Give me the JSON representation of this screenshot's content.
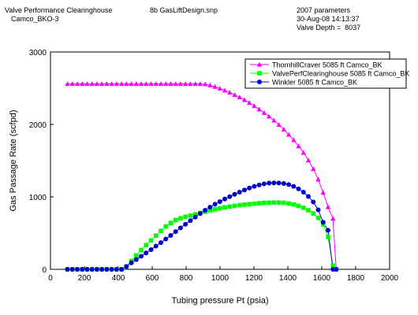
{
  "header": {
    "left_line1": "Valve Performance Clearinghouse",
    "left_line2": "Camco_BKO-3",
    "center": "8b GasLiftDesign.snp",
    "right_line1": "2007 parameters",
    "right_line2": "30-Aug-08 14:13:37",
    "right_line3": "Valve Depth =  8037"
  },
  "chart_data": {
    "type": "line",
    "xlabel": "Tubing pressure Pt (psia)",
    "ylabel": "Gas Passage Rate (scfpd)",
    "xlim": [
      0,
      2000
    ],
    "ylim": [
      0,
      3000
    ],
    "x_ticks": [
      "0",
      "200",
      "400",
      "600",
      "800",
      "1000",
      "1200",
      "1400",
      "1600",
      "1800",
      "2000"
    ],
    "y_ticks": [
      "0",
      "1000",
      "2000",
      "3000"
    ],
    "grid": false,
    "legend_position": "top-right",
    "series": [
      {
        "name": "ThornhillCraver 5085 ft Camco_BK",
        "color": "#ff00ff",
        "marker": "triangle",
        "points": [
          [
            100,
            2560
          ],
          [
            129,
            2560
          ],
          [
            158,
            2560
          ],
          [
            187,
            2560
          ],
          [
            216,
            2560
          ],
          [
            245,
            2560
          ],
          [
            274,
            2560
          ],
          [
            303,
            2560
          ],
          [
            332,
            2560
          ],
          [
            361,
            2560
          ],
          [
            390,
            2560
          ],
          [
            419,
            2560
          ],
          [
            448,
            2560
          ],
          [
            477,
            2560
          ],
          [
            506,
            2560
          ],
          [
            535,
            2560
          ],
          [
            564,
            2560
          ],
          [
            593,
            2560
          ],
          [
            622,
            2560
          ],
          [
            651,
            2560
          ],
          [
            680,
            2560
          ],
          [
            709,
            2560
          ],
          [
            738,
            2560
          ],
          [
            767,
            2560
          ],
          [
            796,
            2560
          ],
          [
            825,
            2560
          ],
          [
            854,
            2560
          ],
          [
            883,
            2560
          ],
          [
            912,
            2555
          ],
          [
            941,
            2540
          ],
          [
            970,
            2520
          ],
          [
            999,
            2495
          ],
          [
            1028,
            2468
          ],
          [
            1057,
            2440
          ],
          [
            1086,
            2408
          ],
          [
            1115,
            2375
          ],
          [
            1144,
            2338
          ],
          [
            1173,
            2298
          ],
          [
            1202,
            2255
          ],
          [
            1231,
            2208
          ],
          [
            1260,
            2160
          ],
          [
            1289,
            2110
          ],
          [
            1318,
            2055
          ],
          [
            1347,
            1995
          ],
          [
            1376,
            1930
          ],
          [
            1405,
            1860
          ],
          [
            1434,
            1785
          ],
          [
            1463,
            1700
          ],
          [
            1492,
            1610
          ],
          [
            1521,
            1505
          ],
          [
            1550,
            1385
          ],
          [
            1579,
            1240
          ],
          [
            1608,
            1060
          ],
          [
            1637,
            860
          ],
          [
            1666,
            700
          ],
          [
            1685,
            0
          ]
        ]
      },
      {
        "name": "ValvePerfClearinghouse 5085 ft Camco_BK",
        "color": "#00ff00",
        "marker": "square",
        "points": [
          [
            100,
            0
          ],
          [
            129,
            0
          ],
          [
            158,
            0
          ],
          [
            187,
            0
          ],
          [
            216,
            0
          ],
          [
            245,
            0
          ],
          [
            274,
            0
          ],
          [
            303,
            0
          ],
          [
            332,
            0
          ],
          [
            361,
            0
          ],
          [
            390,
            0
          ],
          [
            419,
            0
          ],
          [
            448,
            40
          ],
          [
            477,
            115
          ],
          [
            506,
            190
          ],
          [
            535,
            265
          ],
          [
            564,
            335
          ],
          [
            593,
            400
          ],
          [
            622,
            465
          ],
          [
            651,
            530
          ],
          [
            680,
            590
          ],
          [
            709,
            640
          ],
          [
            738,
            680
          ],
          [
            767,
            705
          ],
          [
            796,
            725
          ],
          [
            825,
            742
          ],
          [
            854,
            760
          ],
          [
            883,
            778
          ],
          [
            912,
            795
          ],
          [
            941,
            812
          ],
          [
            970,
            828
          ],
          [
            999,
            842
          ],
          [
            1028,
            855
          ],
          [
            1057,
            866
          ],
          [
            1086,
            876
          ],
          [
            1115,
            885
          ],
          [
            1144,
            893
          ],
          [
            1173,
            900
          ],
          [
            1202,
            906
          ],
          [
            1231,
            912
          ],
          [
            1260,
            917
          ],
          [
            1289,
            920
          ],
          [
            1318,
            922
          ],
          [
            1347,
            922
          ],
          [
            1376,
            918
          ],
          [
            1405,
            908
          ],
          [
            1434,
            895
          ],
          [
            1463,
            875
          ],
          [
            1492,
            850
          ],
          [
            1521,
            815
          ],
          [
            1550,
            770
          ],
          [
            1579,
            710
          ],
          [
            1608,
            620
          ],
          [
            1637,
            450
          ],
          [
            1666,
            50
          ],
          [
            1685,
            0
          ]
        ]
      },
      {
        "name": "Winkler 5085 ft Camco_BK",
        "color": "#0000cc",
        "marker": "circle",
        "points": [
          [
            100,
            0
          ],
          [
            129,
            0
          ],
          [
            158,
            0
          ],
          [
            187,
            0
          ],
          [
            216,
            0
          ],
          [
            245,
            0
          ],
          [
            274,
            0
          ],
          [
            303,
            0
          ],
          [
            332,
            0
          ],
          [
            361,
            0
          ],
          [
            390,
            0
          ],
          [
            419,
            0
          ],
          [
            448,
            40
          ],
          [
            477,
            90
          ],
          [
            506,
            135
          ],
          [
            535,
            180
          ],
          [
            564,
            225
          ],
          [
            593,
            272
          ],
          [
            622,
            320
          ],
          [
            651,
            368
          ],
          [
            680,
            418
          ],
          [
            709,
            468
          ],
          [
            738,
            520
          ],
          [
            767,
            572
          ],
          [
            796,
            622
          ],
          [
            825,
            672
          ],
          [
            854,
            722
          ],
          [
            883,
            770
          ],
          [
            912,
            815
          ],
          [
            941,
            858
          ],
          [
            970,
            898
          ],
          [
            999,
            935
          ],
          [
            1028,
            970
          ],
          [
            1057,
            1003
          ],
          [
            1086,
            1035
          ],
          [
            1115,
            1065
          ],
          [
            1144,
            1095
          ],
          [
            1173,
            1122
          ],
          [
            1202,
            1145
          ],
          [
            1231,
            1165
          ],
          [
            1260,
            1180
          ],
          [
            1289,
            1190
          ],
          [
            1318,
            1193
          ],
          [
            1347,
            1192
          ],
          [
            1376,
            1185
          ],
          [
            1405,
            1170
          ],
          [
            1434,
            1145
          ],
          [
            1463,
            1110
          ],
          [
            1492,
            1065
          ],
          [
            1521,
            1005
          ],
          [
            1550,
            930
          ],
          [
            1579,
            820
          ],
          [
            1608,
            650
          ],
          [
            1637,
            540
          ],
          [
            1666,
            0
          ],
          [
            1685,
            0
          ]
        ]
      }
    ]
  }
}
